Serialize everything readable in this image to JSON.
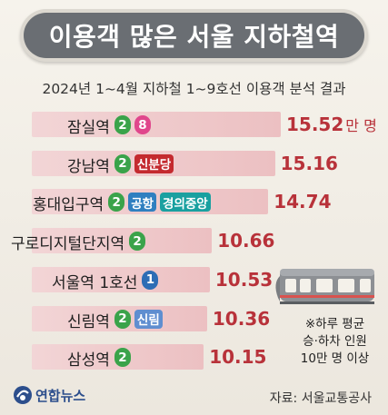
{
  "title": "이용객 많은 서울 지하철역",
  "subtitle": "2024년 1~4월 지하철 1~9호선 이용객 분석 결과",
  "unit": "만 명",
  "note_lines": [
    "※하루 평균",
    "승·하차 인원",
    "10만 명 이상"
  ],
  "source": "자료: 서울교통공사",
  "logo_text": "연합뉴스",
  "colors": {
    "value": "#b8323a",
    "bar": "#efcacc",
    "line2": "#3aa34a",
    "line8": "#e0468c",
    "line1": "#2d6db5",
    "shinbundang": "#c42a2f",
    "airport": "#2f7fc0",
    "gyeongui": "#19a0a0",
    "sillim": "#5f8ed0"
  },
  "chart_data": {
    "type": "bar",
    "orientation": "horizontal",
    "categories": [
      "잠실역",
      "강남역",
      "홍대입구역",
      "구로디지털단지역",
      "서울역 1호선",
      "신림역",
      "삼성역"
    ],
    "values": [
      15.52,
      15.16,
      14.74,
      10.66,
      10.53,
      10.36,
      10.15
    ],
    "value_labels": [
      "15.52",
      "15.16",
      "14.74",
      "10.66",
      "10.53",
      "10.36",
      "10.15"
    ],
    "badges": [
      [
        {
          "text": "2",
          "color": "line2"
        },
        {
          "text": "8",
          "color": "line8"
        }
      ],
      [
        {
          "text": "2",
          "color": "line2"
        },
        {
          "text": "신분당",
          "color": "shinbundang"
        }
      ],
      [
        {
          "text": "2",
          "color": "line2"
        },
        {
          "text": "공항",
          "color": "airport"
        },
        {
          "text": "경의중앙",
          "color": "gyeongui"
        }
      ],
      [
        {
          "text": "2",
          "color": "line2"
        }
      ],
      [
        {
          "text": "1",
          "color": "line1"
        }
      ],
      [
        {
          "text": "2",
          "color": "line2"
        },
        {
          "text": "신림",
          "color": "sillim"
        }
      ],
      [
        {
          "text": "2",
          "color": "line2"
        }
      ]
    ]
  }
}
